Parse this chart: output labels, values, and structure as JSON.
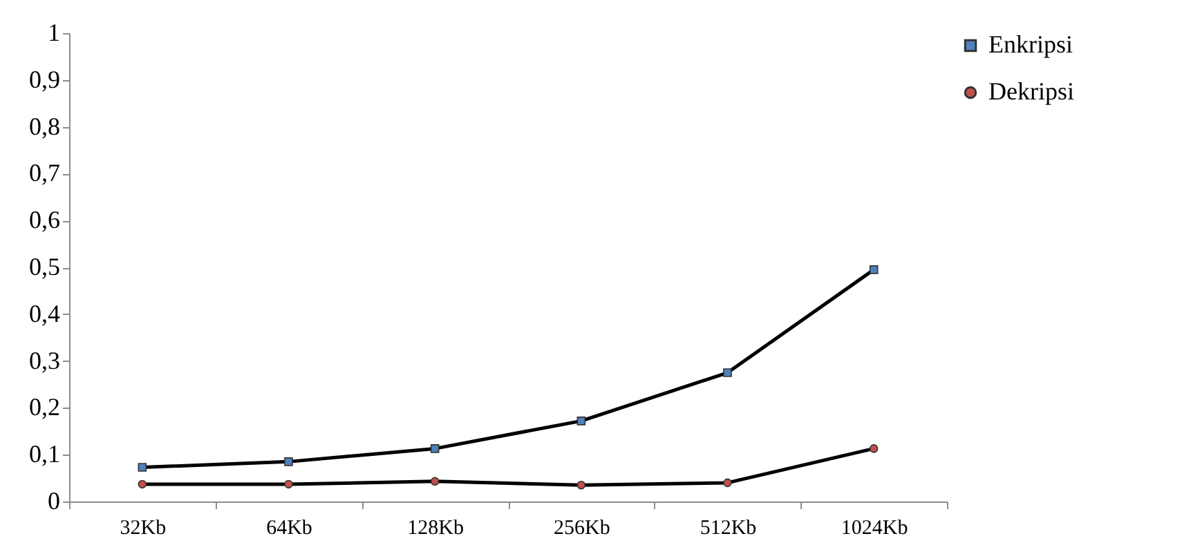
{
  "chart_data": {
    "type": "line",
    "categories": [
      "32Kb",
      "64Kb",
      "128Kb",
      "256Kb",
      "512Kb",
      "1024Kb"
    ],
    "series": [
      {
        "name": "Enkripsi",
        "color": "#4f81bd",
        "marker": "square",
        "values": [
          0.073,
          0.085,
          0.113,
          0.172,
          0.275,
          0.495
        ]
      },
      {
        "name": "Dekripsi",
        "color": "#c0504d",
        "marker": "circle",
        "values": [
          0.037,
          0.037,
          0.043,
          0.035,
          0.04,
          0.113
        ]
      }
    ],
    "ylim": [
      0,
      1
    ],
    "yticks": [
      0,
      {
        "value": 0.1,
        "label": "0,1"
      },
      {
        "value": 0.2,
        "label": "0,2"
      },
      {
        "value": 0.3,
        "label": "0,3"
      },
      {
        "value": 0.4,
        "label": "0,4"
      },
      {
        "value": 0.5,
        "label": "0,5"
      },
      {
        "value": 0.6,
        "label": "0,6"
      },
      {
        "value": 0.7,
        "label": "0,7"
      },
      {
        "value": 0.8,
        "label": "0,8"
      },
      {
        "value": 0.9,
        "label": "0,9"
      },
      1
    ],
    "grid": false,
    "legend": "right",
    "line_style": "solid"
  }
}
